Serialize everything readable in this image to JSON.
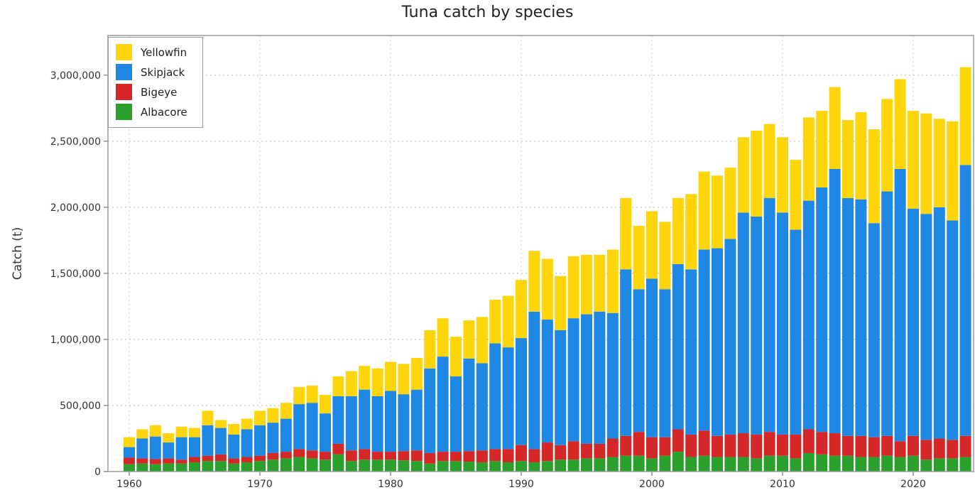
{
  "chart_data": {
    "type": "bar",
    "stacked": true,
    "title": "Tuna catch by species",
    "xlabel": "",
    "ylabel": "Catch (t)",
    "ylim": [
      0,
      3300000
    ],
    "yticks": [
      0,
      500000,
      1000000,
      1500000,
      2000000,
      2500000,
      3000000
    ],
    "ytick_labels": [
      "0",
      "500,000",
      "1,000,000",
      "1,500,000",
      "2,000,000",
      "2,500,000",
      "3,000,000"
    ],
    "xticks": [
      1960,
      1970,
      1980,
      1990,
      2000,
      2010,
      2020
    ],
    "xtick_labels": [
      "1960",
      "1970",
      "1980",
      "1990",
      "2000",
      "2010",
      "2020"
    ],
    "grid": true,
    "legend_position": "top-left",
    "categories": [
      1960,
      1961,
      1962,
      1963,
      1964,
      1965,
      1966,
      1967,
      1968,
      1969,
      1970,
      1971,
      1972,
      1973,
      1974,
      1975,
      1976,
      1977,
      1978,
      1979,
      1980,
      1981,
      1982,
      1983,
      1984,
      1985,
      1986,
      1987,
      1988,
      1989,
      1990,
      1991,
      1992,
      1993,
      1994,
      1995,
      1996,
      1997,
      1998,
      1999,
      2000,
      2001,
      2002,
      2003,
      2004,
      2005,
      2006,
      2007,
      2008,
      2009,
      2010,
      2011,
      2012,
      2013,
      2014,
      2015,
      2016,
      2017,
      2018,
      2019,
      2020,
      2021,
      2022,
      2023,
      2024
    ],
    "series": [
      {
        "name": "Albacore",
        "color": "#2ca02c",
        "values": [
          55000,
          60000,
          55000,
          60000,
          60000,
          70000,
          80000,
          80000,
          60000,
          70000,
          80000,
          90000,
          100000,
          110000,
          100000,
          90000,
          130000,
          80000,
          90000,
          90000,
          90000,
          85000,
          80000,
          60000,
          80000,
          80000,
          75000,
          70000,
          80000,
          70000,
          80000,
          70000,
          80000,
          90000,
          90000,
          100000,
          100000,
          110000,
          120000,
          120000,
          100000,
          120000,
          150000,
          110000,
          120000,
          110000,
          110000,
          110000,
          100000,
          120000,
          120000,
          100000,
          140000,
          130000,
          120000,
          120000,
          110000,
          110000,
          120000,
          110000,
          120000,
          90000,
          100000,
          100000,
          110000
        ]
      },
      {
        "name": "Bigeye",
        "color": "#d62728",
        "values": [
          50000,
          40000,
          40000,
          40000,
          30000,
          40000,
          40000,
          50000,
          40000,
          40000,
          40000,
          50000,
          50000,
          60000,
          60000,
          60000,
          80000,
          80000,
          80000,
          60000,
          60000,
          70000,
          80000,
          80000,
          70000,
          70000,
          80000,
          90000,
          90000,
          100000,
          120000,
          100000,
          140000,
          110000,
          140000,
          110000,
          110000,
          140000,
          150000,
          180000,
          160000,
          140000,
          170000,
          170000,
          190000,
          160000,
          170000,
          180000,
          180000,
          180000,
          160000,
          180000,
          180000,
          170000,
          170000,
          150000,
          160000,
          150000,
          150000,
          120000,
          150000,
          150000,
          150000,
          140000,
          160000
        ]
      },
      {
        "name": "Skipjack",
        "color": "#1f88e5",
        "values": [
          80000,
          150000,
          170000,
          120000,
          170000,
          150000,
          230000,
          200000,
          180000,
          210000,
          230000,
          230000,
          250000,
          340000,
          360000,
          290000,
          360000,
          410000,
          450000,
          420000,
          460000,
          430000,
          460000,
          640000,
          720000,
          570000,
          700000,
          660000,
          800000,
          770000,
          810000,
          1040000,
          930000,
          870000,
          930000,
          980000,
          1000000,
          950000,
          1260000,
          1080000,
          1200000,
          1120000,
          1250000,
          1250000,
          1370000,
          1420000,
          1480000,
          1670000,
          1650000,
          1770000,
          1680000,
          1550000,
          1730000,
          1850000,
          2000000,
          1800000,
          1790000,
          1620000,
          1850000,
          2060000,
          1720000,
          1710000,
          1750000,
          1660000,
          2050000
        ]
      },
      {
        "name": "Yellowfin",
        "color": "#fed40a",
        "values": [
          75000,
          70000,
          85000,
          70000,
          80000,
          70000,
          110000,
          60000,
          80000,
          80000,
          110000,
          110000,
          120000,
          130000,
          130000,
          140000,
          150000,
          190000,
          180000,
          210000,
          220000,
          230000,
          240000,
          290000,
          290000,
          300000,
          290000,
          350000,
          330000,
          390000,
          440000,
          460000,
          460000,
          410000,
          470000,
          450000,
          430000,
          480000,
          540000,
          480000,
          510000,
          510000,
          500000,
          570000,
          590000,
          550000,
          540000,
          570000,
          650000,
          560000,
          570000,
          530000,
          630000,
          580000,
          620000,
          590000,
          660000,
          710000,
          700000,
          680000,
          740000,
          760000,
          670000,
          750000,
          740000
        ]
      }
    ]
  }
}
